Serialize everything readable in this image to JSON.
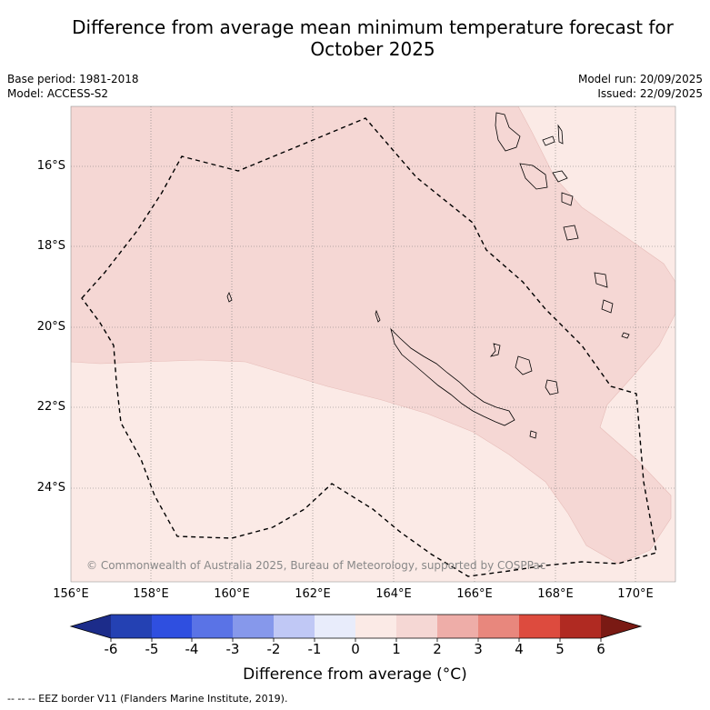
{
  "title": {
    "line1": "Difference from average mean minimum temperature forecast for",
    "line2": "October 2025"
  },
  "meta_left": {
    "base_period": "Base period: 1981-2018",
    "model": "Model: ACCESS-S2"
  },
  "meta_right": {
    "model_run": "Model run: 20/09/2025",
    "issued": "Issued: 22/09/2025"
  },
  "map": {
    "lon_range": [
      156.0,
      171.0
    ],
    "lat_range": [
      -26.0,
      -14.5
    ],
    "x_ticks": [
      "156°E",
      "158°E",
      "160°E",
      "162°E",
      "164°E",
      "166°E",
      "168°E",
      "170°E"
    ],
    "y_ticks": [
      "16°S",
      "18°S",
      "20°S",
      "22°S",
      "24°S"
    ],
    "copyright": "© Commonwealth of Australia 2025, Bureau of Meteorology, supported by COSPPac",
    "fill_colors": {
      "band_0_1": "#fbeae6",
      "band_1_2": "#f5d7d4"
    }
  },
  "colorbar": {
    "title": "Difference from average (°C)",
    "ticks": [
      "-6",
      "-5",
      "-4",
      "-3",
      "-2",
      "-1",
      "0",
      "1",
      "2",
      "3",
      "4",
      "5",
      "6"
    ],
    "colors": [
      "#1c2c8a",
      "#2441b3",
      "#2f4fe0",
      "#5a73e6",
      "#8698eb",
      "#c0c8f5",
      "#e8ecfb",
      "#fbeae6",
      "#f5d7d4",
      "#eeada8",
      "#e8877d",
      "#dd4b3e",
      "#b02a22",
      "#7a1a14"
    ]
  },
  "footnote": "--  --  -- EEZ border V11 (Flanders Marine Institute, 2019)."
}
